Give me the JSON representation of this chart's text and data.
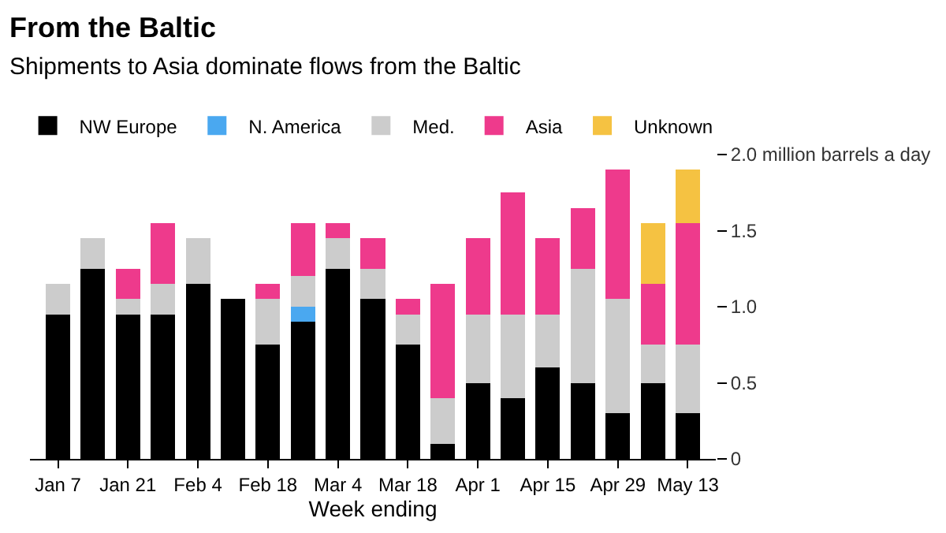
{
  "chart_data": {
    "type": "bar",
    "title": "From the Baltic",
    "subtitle": "Shipments to Asia dominate flows from the Baltic",
    "xlabel": "Week ending",
    "categories": [
      "Jan 7",
      null,
      "Jan 21",
      null,
      "Feb 4",
      null,
      "Feb 18",
      null,
      "Mar 4",
      null,
      "Mar 18",
      null,
      "Apr 1",
      null,
      "Apr 15",
      null,
      "Apr 29",
      null,
      "May 13"
    ],
    "stacked": true,
    "series": [
      {
        "name": "NW Europe",
        "color": "#000000",
        "values": [
          0.95,
          1.25,
          0.95,
          0.95,
          1.15,
          1.05,
          0.75,
          0.9,
          1.25,
          1.05,
          0.75,
          0.1,
          0.5,
          0.4,
          0.6,
          0.5,
          0.3,
          0.5,
          0.3
        ]
      },
      {
        "name": "N. America",
        "color": "#4aa8f0",
        "values": [
          0,
          0,
          0,
          0,
          0,
          0,
          0,
          0.1,
          0,
          0,
          0,
          0,
          0,
          0,
          0,
          0,
          0,
          0,
          0
        ]
      },
      {
        "name": "Med.",
        "color": "#cccccc",
        "values": [
          0.2,
          0.2,
          0.1,
          0.2,
          0.3,
          0,
          0.3,
          0.2,
          0.2,
          0.2,
          0.2,
          0.3,
          0.45,
          0.55,
          0.35,
          0.75,
          0.75,
          0.25,
          0.45
        ]
      },
      {
        "name": "Asia",
        "color": "#ee3a8c",
        "values": [
          0,
          0,
          0.2,
          0.4,
          0,
          0,
          0.1,
          0.35,
          0.1,
          0.2,
          0.1,
          0.75,
          0.5,
          0.8,
          0.5,
          0.4,
          0.85,
          0.4,
          0.8
        ]
      },
      {
        "name": "Unknown",
        "color": "#f5c242",
        "values": [
          0,
          0,
          0,
          0,
          0,
          0,
          0,
          0,
          0,
          0,
          0,
          0,
          0,
          0,
          0,
          0,
          0,
          0.4,
          0.35
        ]
      }
    ],
    "ylim": [
      0,
      2.0
    ],
    "yticks": [
      0,
      0.5,
      {
        "value": 1.0,
        "label": "1.0"
      },
      1.5,
      {
        "value": 2.0,
        "label": "2.0 million barrels a day"
      }
    ],
    "legend": "top left"
  }
}
